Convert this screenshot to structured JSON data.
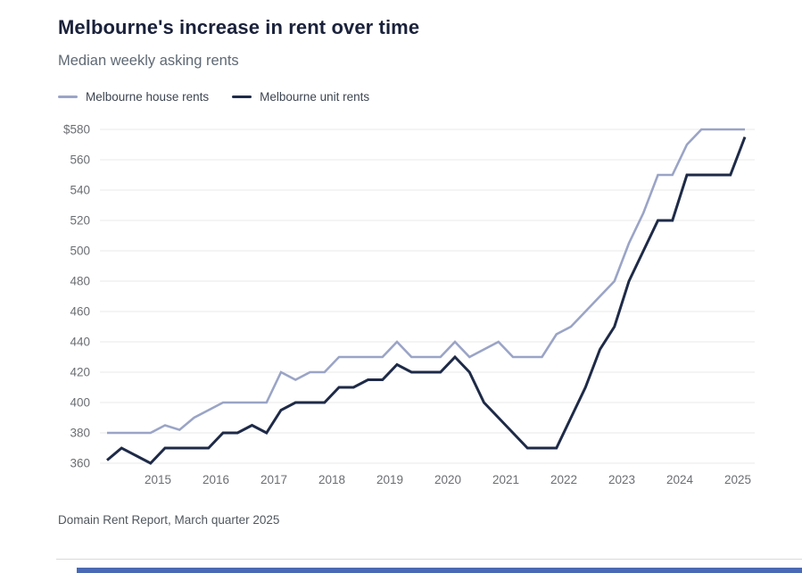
{
  "header": {
    "title": "Melbourne's increase in rent over time",
    "subtitle": "Median weekly asking rents"
  },
  "legend": [
    {
      "label": "Melbourne house rents",
      "color": "#9aa4c6"
    },
    {
      "label": "Melbourne unit rents",
      "color": "#1e2a47"
    }
  ],
  "chart_data": {
    "type": "line",
    "title": "Melbourne's increase in rent over time",
    "subtitle": "Median weekly asking rents",
    "period": {
      "start": "Mar quarter 2014",
      "end": "Mar quarter 2025",
      "interval": "quarterly"
    },
    "x_tick_labels": [
      "2015",
      "2016",
      "2017",
      "2018",
      "2019",
      "2020",
      "2021",
      "2022",
      "2023",
      "2024",
      "2025"
    ],
    "y_tick_labels": [
      "$580",
      "560",
      "540",
      "520",
      "500",
      "480",
      "460",
      "440",
      "420",
      "400",
      "380",
      "360"
    ],
    "y_ticks": [
      580,
      560,
      540,
      520,
      500,
      480,
      460,
      440,
      420,
      400,
      380,
      360
    ],
    "ylim": [
      360,
      580
    ],
    "grid": "horizontal",
    "legend_position": "top-left",
    "series": [
      {
        "name": "Melbourne house rents",
        "color": "#9aa4c6",
        "values": [
          380,
          380,
          380,
          380,
          385,
          382,
          390,
          395,
          400,
          400,
          400,
          400,
          420,
          415,
          420,
          420,
          430,
          430,
          430,
          430,
          440,
          430,
          430,
          430,
          440,
          430,
          435,
          440,
          430,
          430,
          430,
          445,
          450,
          460,
          470,
          480,
          505,
          525,
          550,
          550,
          570,
          580,
          580,
          580,
          580
        ]
      },
      {
        "name": "Melbourne unit rents",
        "color": "#1e2a47",
        "values": [
          362,
          370,
          365,
          360,
          370,
          370,
          370,
          370,
          380,
          380,
          385,
          380,
          395,
          400,
          400,
          400,
          410,
          410,
          415,
          415,
          425,
          420,
          420,
          420,
          430,
          420,
          400,
          390,
          380,
          370,
          370,
          370,
          390,
          410,
          435,
          450,
          480,
          500,
          520,
          520,
          550,
          550,
          550,
          550,
          575
        ]
      }
    ]
  },
  "footer": {
    "source": "Domain Rent Report, March quarter 2025"
  },
  "colors": {
    "title": "#1a213a",
    "axis_labels": "#6b6e72",
    "gridline": "#e8e8e8",
    "divider": "#d9d9d9",
    "bottom_bar": "#4a69b5"
  }
}
